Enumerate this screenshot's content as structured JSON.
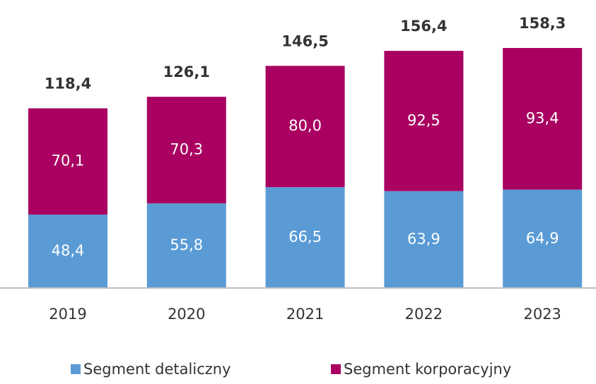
{
  "chart_data": {
    "type": "stacked_bar",
    "categories": [
      "2019",
      "2020",
      "2021",
      "2022",
      "2023"
    ],
    "series": [
      {
        "name": "Segment detaliczny",
        "color": "#5a9bd5",
        "values": [
          48.4,
          55.8,
          66.5,
          63.9,
          64.9
        ],
        "value_labels": [
          "48,4",
          "55,8",
          "66,5",
          "63,9",
          "64,9"
        ]
      },
      {
        "name": "Segment korporacyjny",
        "color": "#a90061",
        "values": [
          70.1,
          70.3,
          80.0,
          92.5,
          93.4
        ],
        "value_labels": [
          "70,1",
          "70,3",
          "80,0",
          "92,5",
          "93,4"
        ]
      }
    ],
    "totals": [
      118.4,
      126.1,
      146.5,
      156.4,
      158.3
    ],
    "total_labels": [
      "118,4",
      "126,1",
      "146,5",
      "156,4",
      "158,3"
    ],
    "legend": "bottom"
  }
}
